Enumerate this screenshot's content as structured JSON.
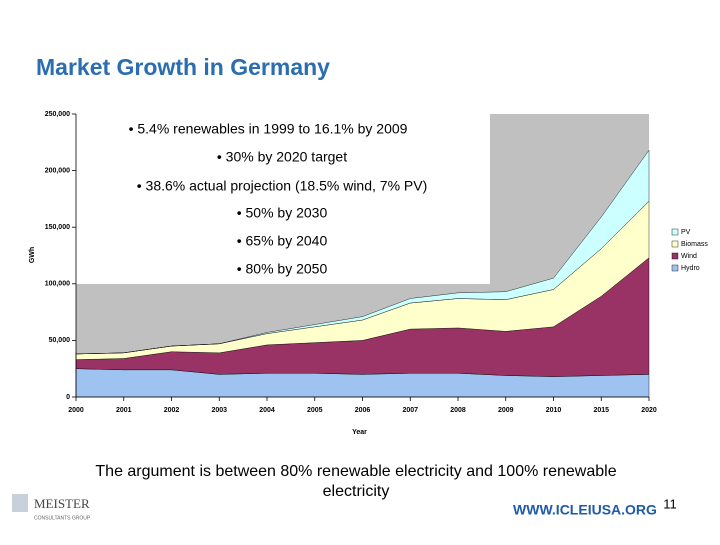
{
  "title": "Market Growth in Germany",
  "chart_data": {
    "type": "stacked_area",
    "y_label": "GWh",
    "x_label": "Year",
    "categories": [
      "2000",
      "2001",
      "2002",
      "2003",
      "2004",
      "2005",
      "2006",
      "2007",
      "2008",
      "2009",
      "2010",
      "2015",
      "2020"
    ],
    "series": [
      {
        "name": "Hydro",
        "color": "#9fc3f0",
        "values": [
          25000,
          24000,
          24000,
          20000,
          21000,
          21000,
          20000,
          21000,
          21000,
          19000,
          18000,
          19000,
          20000
        ]
      },
      {
        "name": "Wind",
        "color": "#993366",
        "values": [
          8000,
          10000,
          16000,
          19000,
          25000,
          27000,
          30000,
          39000,
          40000,
          39000,
          44000,
          70000,
          103000
        ]
      },
      {
        "name": "Biomass",
        "color": "#ffffcc",
        "values": [
          5000,
          5000,
          5000,
          8000,
          10000,
          14000,
          18000,
          23000,
          26000,
          28000,
          33000,
          42000,
          50000
        ]
      },
      {
        "name": "PV",
        "color": "#ccffff",
        "values": [
          0,
          0,
          0,
          0,
          1000,
          2000,
          3000,
          4000,
          5000,
          7000,
          10000,
          28000,
          45000
        ]
      }
    ],
    "ylim": [
      0,
      250000
    ],
    "yticks": [
      0,
      {
        "value": 50000,
        "label": "50,000"
      },
      {
        "value": 100000,
        "label": "100,000"
      },
      {
        "value": 150000,
        "label": "150,000"
      },
      {
        "value": 200000,
        "label": "200,000"
      },
      {
        "value": 250000,
        "label": "250,000"
      }
    ],
    "legend": "right",
    "annotations": [
      "• 5.4% renewables in 1999 to 16.1% by 2009",
      "• 30% by 2020 target",
      "• 38.6% actual projection (18.5% wind, 7% PV)",
      "• 50% by 2030",
      "• 65% by 2040",
      "• 80% by 2050"
    ]
  },
  "caption": "The argument is between 80% renewable electricity and 100% renewable electricity",
  "url": "WWW.ICLEIUSA.ORG",
  "page_number": "11",
  "logo": {
    "name": "MEISTER",
    "subtitle": "CONSULTANTS GROUP"
  }
}
